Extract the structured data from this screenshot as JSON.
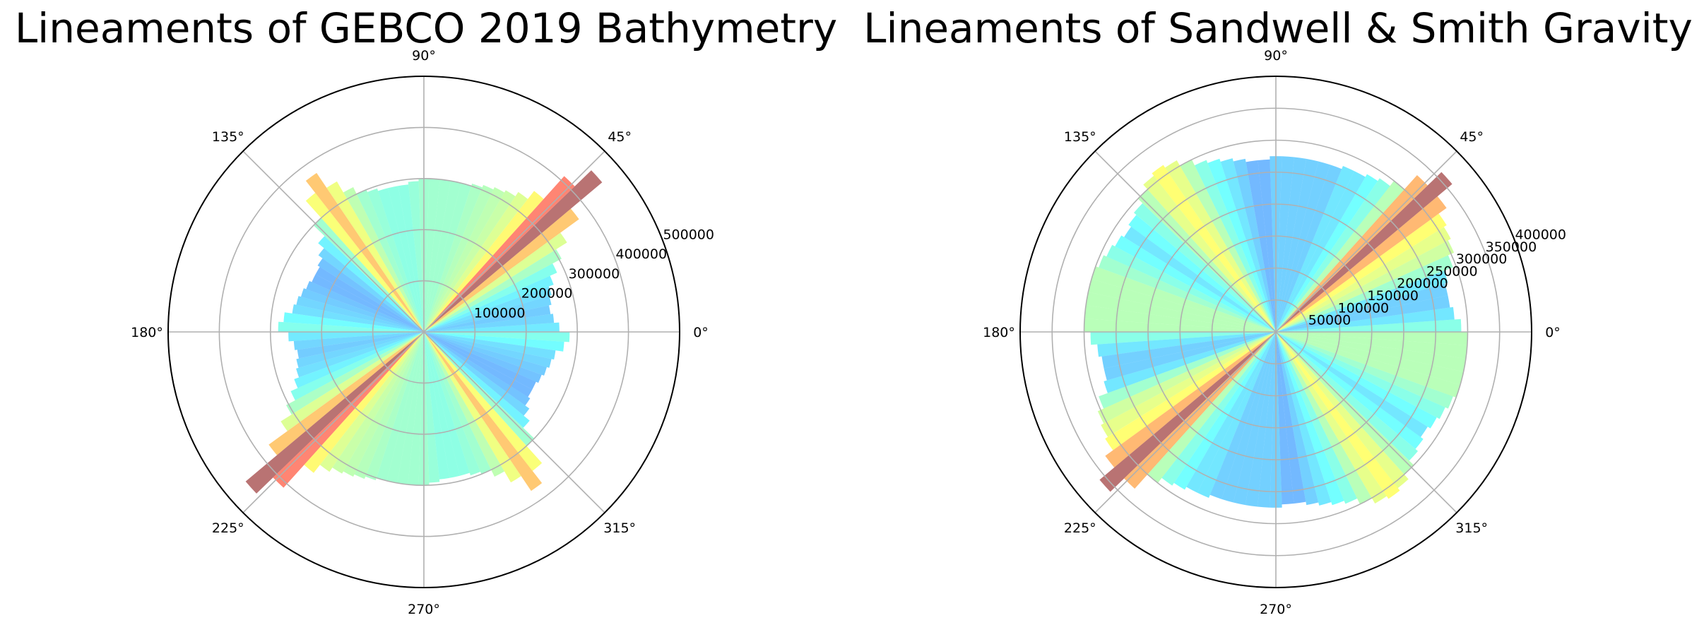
{
  "chart_data": [
    {
      "type": "polar_bar",
      "title": "Lineaments of GEBCO 2019 Bathymetry",
      "rmax": 500000,
      "radial_ticks": [
        100000,
        200000,
        300000,
        400000,
        500000
      ],
      "radial_tick_labels": [
        "100000",
        "200000",
        "300000",
        "400000",
        "500000"
      ],
      "theta_ticks": [
        0,
        45,
        90,
        135,
        180,
        225,
        270,
        315
      ],
      "theta_tick_labels": [
        "0°",
        "45°",
        "90°",
        "135°",
        "180°",
        "225°",
        "270°",
        "315°"
      ],
      "grid": true,
      "symmetric_about_origin": true,
      "bin_width_deg": 4,
      "bin_centers_deg": [
        2,
        6,
        10,
        14,
        18,
        22,
        26,
        30,
        34,
        38,
        42,
        46,
        50,
        54,
        58,
        62,
        66,
        70,
        74,
        78,
        82,
        86,
        90,
        94,
        98,
        102,
        106,
        110,
        114,
        118,
        122,
        126,
        130,
        134,
        138,
        142,
        146,
        150,
        154,
        158,
        162,
        166,
        170,
        174,
        178
      ],
      "values": [
        265000,
        255000,
        250000,
        255000,
        260000,
        270000,
        285000,
        305000,
        330000,
        375000,
        455000,
        410000,
        350000,
        330000,
        320000,
        315000,
        310000,
        305000,
        300000,
        300000,
        300000,
        300000,
        300000,
        295000,
        290000,
        290000,
        290000,
        295000,
        300000,
        315000,
        340000,
        375000,
        345000,
        300000,
        270000,
        255000,
        245000,
        240000,
        240000,
        245000,
        250000,
        255000,
        260000,
        275000,
        285000
      ]
    },
    {
      "type": "polar_bar",
      "title": "Lineaments of Sandwell & Smith Gravity",
      "rmax": 400000,
      "radial_ticks": [
        50000,
        100000,
        150000,
        200000,
        250000,
        300000,
        350000,
        400000
      ],
      "radial_tick_labels": [
        "50000",
        "100000",
        "150000",
        "200000",
        "250000",
        "300000",
        "350000",
        "400000"
      ],
      "theta_ticks": [
        0,
        45,
        90,
        135,
        180,
        225,
        270,
        315
      ],
      "theta_tick_labels": [
        "0°",
        "45°",
        "90°",
        "135°",
        "180°",
        "225°",
        "270°",
        "315°"
      ],
      "grid": true,
      "symmetric_about_origin": true,
      "bin_width_deg": 4,
      "bin_centers_deg": [
        2,
        6,
        10,
        14,
        18,
        22,
        26,
        30,
        34,
        38,
        42,
        46,
        50,
        54,
        58,
        62,
        66,
        70,
        74,
        78,
        82,
        86,
        90,
        94,
        98,
        102,
        106,
        110,
        114,
        118,
        122,
        126,
        130,
        134,
        138,
        142,
        146,
        150,
        154,
        158,
        162,
        166,
        170,
        174,
        178
      ],
      "values": [
        290000,
        280000,
        275000,
        275000,
        280000,
        295000,
        305000,
        310000,
        315000,
        330000,
        360000,
        330000,
        300000,
        290000,
        285000,
        280000,
        280000,
        275000,
        275000,
        275000,
        275000,
        275000,
        275000,
        270000,
        270000,
        275000,
        280000,
        285000,
        290000,
        300000,
        310000,
        315000,
        310000,
        300000,
        290000,
        285000,
        280000,
        285000,
        290000,
        295000,
        300000,
        300000,
        300000,
        300000,
        300000
      ]
    }
  ]
}
